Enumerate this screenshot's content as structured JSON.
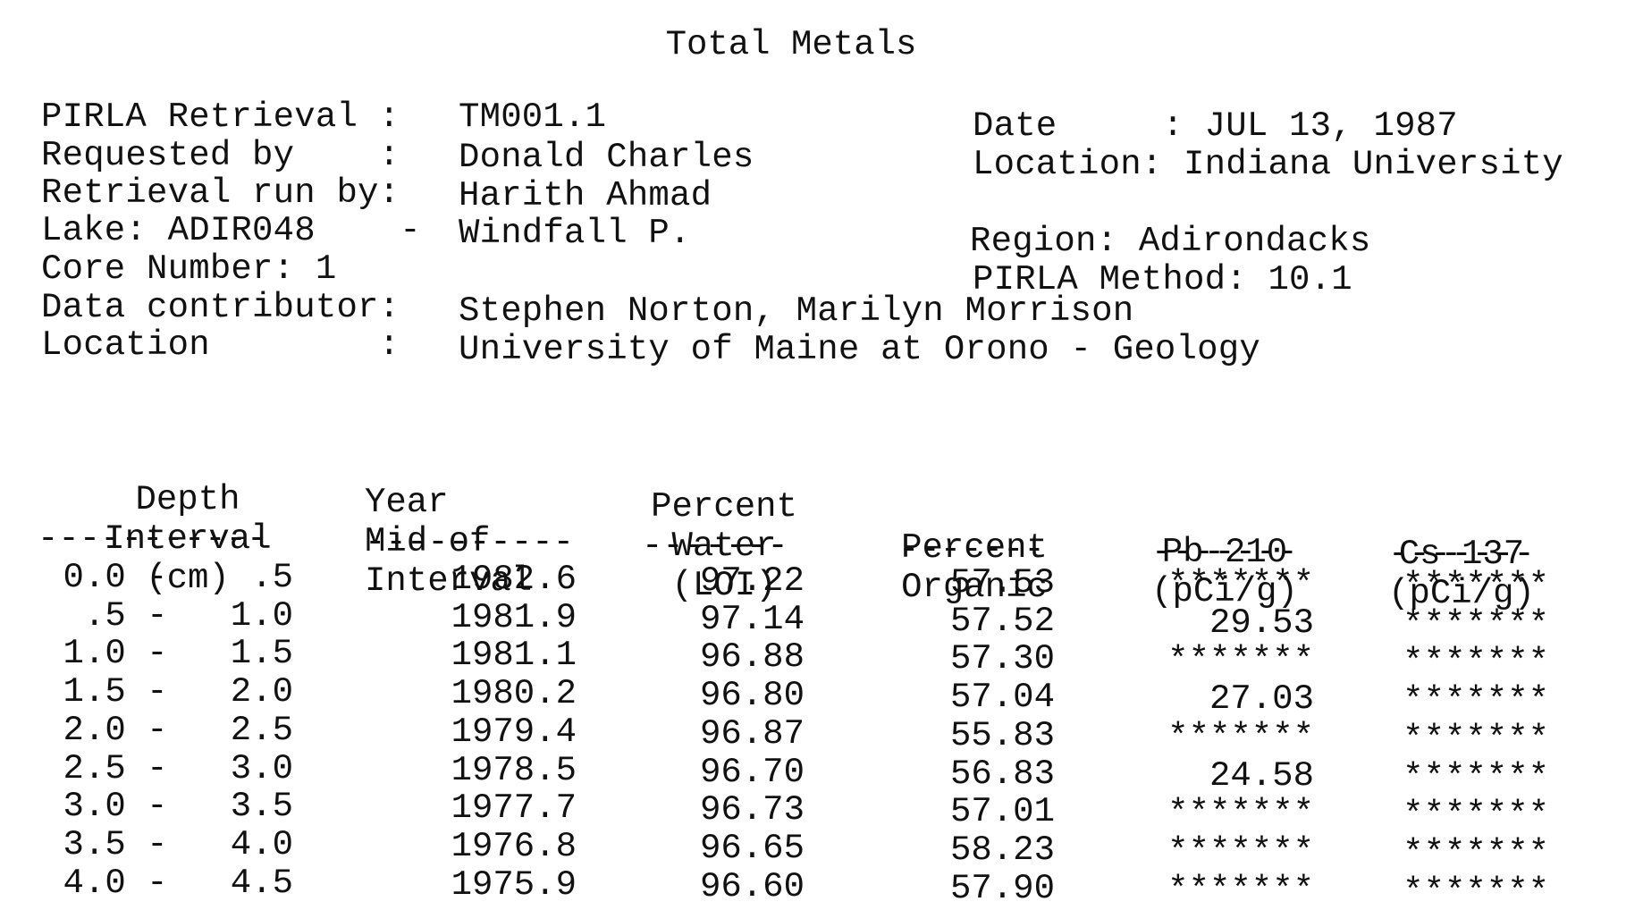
{
  "title": "Total Metals",
  "meta_left": [
    {
      "label": "PIRLA Retrieval :",
      "value": "TM001.1"
    },
    {
      "label": "Requested by    :",
      "value": "Donald Charles"
    },
    {
      "label": "Retrieval run by:",
      "value": "Harith Ahmad"
    },
    {
      "label": "Lake: ADIR048    -",
      "value": "Windfall P."
    },
    {
      "label": "Core Number: 1",
      "value": ""
    },
    {
      "label": "Data contributor:",
      "value": "Stephen Norton, Marilyn Morrison"
    },
    {
      "label": "Location        :",
      "value": "University of Maine at Orono - Geology"
    }
  ],
  "meta_right": {
    "date": "Date     : JUL 13, 1987",
    "location": "Location: Indiana University",
    "region": "Region: Adirondacks",
    "method": "PIRLA Method: 10.1"
  },
  "columns": [
    {
      "lines": [
        "Depth",
        "Interval",
        "(cm)"
      ],
      "dashes": "-----------"
    },
    {
      "lines": [
        "Year",
        "Mid of",
        "Interval"
      ],
      "dashes": "----------"
    },
    {
      "lines": [
        "Percent",
        "Water",
        "(LOI)"
      ],
      "dashes": "-------"
    },
    {
      "lines": [
        "Percent",
        "Organic"
      ],
      "dashes": "-------"
    },
    {
      "lines": [
        "Pb-210",
        "(pCi/g)"
      ],
      "dashes": "-------"
    },
    {
      "lines": [
        "Cs-137",
        "(pCi/g)"
      ],
      "dashes": "-------"
    }
  ],
  "rows": [
    [
      "0.0 -    .5",
      "1982.6",
      "97.22",
      "57.53",
      "*******",
      "*******"
    ],
    [
      " .5 -   1.0",
      "1981.9",
      "97.14",
      "57.52",
      "29.53",
      "*******"
    ],
    [
      "1.0 -   1.5",
      "1981.1",
      "96.88",
      "57.30",
      "*******",
      "*******"
    ],
    [
      "1.5 -   2.0",
      "1980.2",
      "96.80",
      "57.04",
      "27.03",
      "*******"
    ],
    [
      "2.0 -   2.5",
      "1979.4",
      "96.87",
      "55.83",
      "*******",
      "*******"
    ],
    [
      "2.5 -   3.0",
      "1978.5",
      "96.70",
      "56.83",
      "24.58",
      "*******"
    ],
    [
      "3.0 -   3.5",
      "1977.7",
      "96.73",
      "57.01",
      "*******",
      "*******"
    ],
    [
      "3.5 -   4.0",
      "1976.8",
      "96.65",
      "58.23",
      "*******",
      "*******"
    ],
    [
      "4.0 -   4.5",
      "1975.9",
      "96.60",
      "57.90",
      "*******",
      "*******"
    ]
  ]
}
